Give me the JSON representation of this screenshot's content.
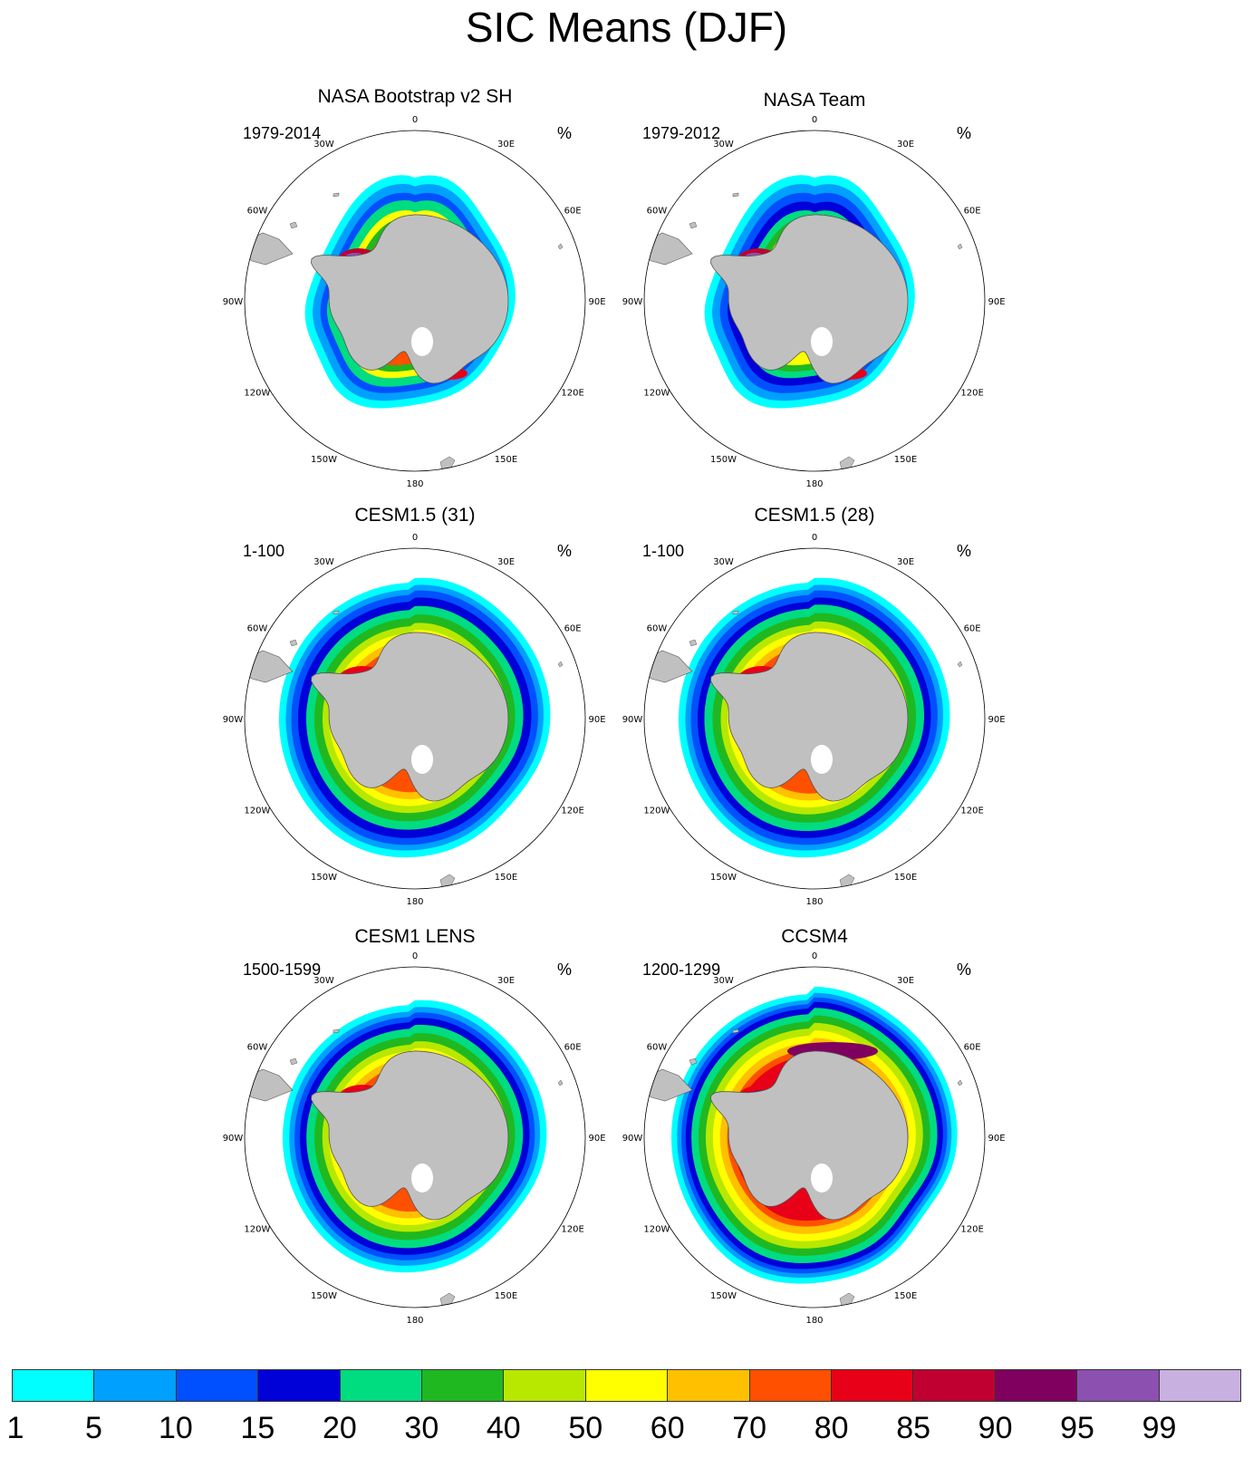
{
  "title": "SIC Means (DJF)",
  "panels": [
    {
      "title": "NASA Bootstrap v2 SH",
      "period": "1979-2014",
      "units": "%",
      "style": "obs1"
    },
    {
      "title": "NASA Team",
      "period": "1979-2012",
      "units": "%",
      "style": "obs2"
    },
    {
      "title": "CESM1.5 (31)",
      "period": "1-100",
      "units": "%",
      "style": "cesm15a"
    },
    {
      "title": "CESM1.5 (28)",
      "period": "1-100",
      "units": "%",
      "style": "cesm15b"
    },
    {
      "title": "CESM1 LENS",
      "period": "1500-1599",
      "units": "%",
      "style": "lens"
    },
    {
      "title": "CCSM4",
      "period": "1200-1299",
      "units": "%",
      "style": "ccsm4"
    }
  ],
  "map_labels": [
    "0",
    "30E",
    "60E",
    "90E",
    "120E",
    "150E",
    "180",
    "150W",
    "120W",
    "90W",
    "60W",
    "30W"
  ],
  "colorbar": {
    "labels": [
      "1",
      "5",
      "10",
      "15",
      "20",
      "30",
      "40",
      "50",
      "60",
      "70",
      "80",
      "85",
      "90",
      "95",
      "99"
    ],
    "colors": [
      "#00ffff",
      "#00a0ff",
      "#0050ff",
      "#0000d8",
      "#00dc80",
      "#20b820",
      "#b8e800",
      "#ffff00",
      "#ffc000",
      "#ff5000",
      "#e80018",
      "#c00030",
      "#800060",
      "#8c50b0",
      "#c8b0e0"
    ]
  },
  "colors": {
    "land": "#c0c0c0",
    "coast": "#555555",
    "background": "#ffffff"
  }
}
